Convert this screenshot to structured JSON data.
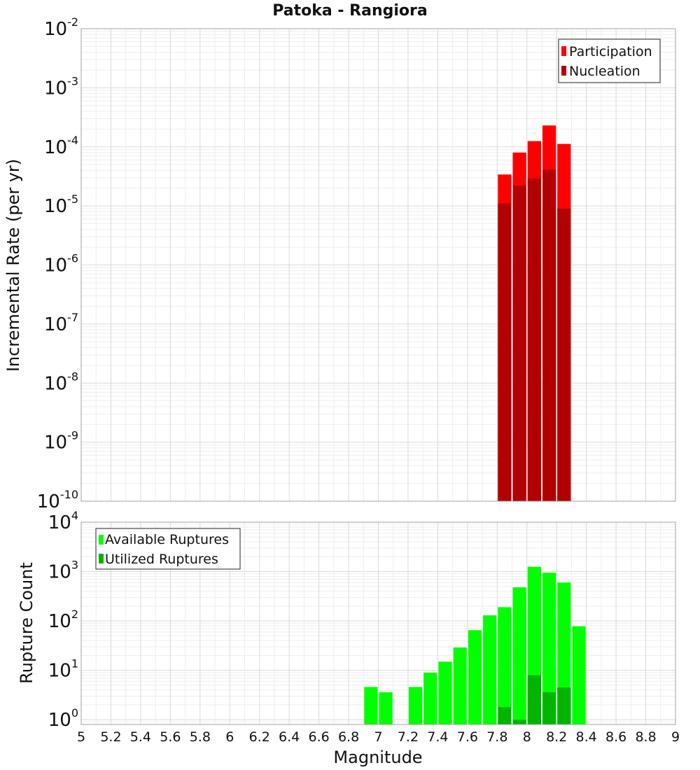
{
  "figure": {
    "title": "Patoka - Rangiora",
    "xlabel": "Magnitude"
  },
  "colors": {
    "participation": "#ff0000",
    "nucleation": "#b20000",
    "available": "#00ff00",
    "utilized": "#00b400",
    "bar_separator": "#ffffff"
  },
  "chart_data": [
    {
      "type": "bar",
      "panel": "rates",
      "title": "Patoka - Rangiora",
      "xlabel": "Magnitude",
      "ylabel": "Incremental Rate (per yr)",
      "yscale": "log",
      "ylim": [
        1e-10,
        0.01
      ],
      "xlim": [
        5,
        9
      ],
      "ytick_exponents": [
        -10,
        -9,
        -8,
        -7,
        -6,
        -5,
        -4,
        -3,
        -2
      ],
      "bin_width": 0.1,
      "legend": {
        "position": "top-right",
        "entries": [
          "Participation",
          "Nucleation"
        ]
      },
      "x": [
        7.85,
        7.95,
        8.05,
        8.15,
        8.25
      ],
      "series": [
        {
          "name": "Participation",
          "color": "#ff0000",
          "values": [
            3.4e-05,
            8e-05,
            0.000125,
            0.00023,
            0.000112
          ]
        },
        {
          "name": "Nucleation",
          "color": "#b20000",
          "values": [
            1.1e-05,
            2.2e-05,
            2.9e-05,
            4.1e-05,
            9e-06
          ]
        }
      ],
      "grid": true
    },
    {
      "type": "bar",
      "panel": "counts",
      "xlabel": "Magnitude",
      "ylabel": "Rupture Count",
      "yscale": "log",
      "ylim": [
        0.8,
        10000
      ],
      "xlim": [
        5,
        9
      ],
      "ytick_exponents": [
        0,
        1,
        2,
        3,
        4
      ],
      "xticks": [
        "5",
        "5.2",
        "5.4",
        "5.6",
        "5.8",
        "6",
        "6.2",
        "6.4",
        "6.6",
        "6.8",
        "7",
        "7.2",
        "7.4",
        "7.6",
        "7.8",
        "8",
        "8.2",
        "8.4",
        "8.6",
        "8.8",
        "9"
      ],
      "bin_width": 0.1,
      "legend": {
        "position": "top-left",
        "entries": [
          "Available Ruptures",
          "Utilized Ruptures"
        ]
      },
      "series": [
        {
          "name": "Available Ruptures",
          "color": "#00ff00",
          "x": [
            6.95,
            7.05,
            7.25,
            7.35,
            7.45,
            7.55,
            7.65,
            7.75,
            7.85,
            7.95,
            8.05,
            8.15,
            8.25,
            8.35
          ],
          "values": [
            4.6,
            3.6,
            4.6,
            9,
            15,
            29,
            65,
            130,
            190,
            480,
            1250,
            950,
            600,
            78
          ]
        },
        {
          "name": "Utilized Ruptures",
          "color": "#00b400",
          "x": [
            7.85,
            7.95,
            8.05,
            8.15,
            8.25
          ],
          "values": [
            1.8,
            1.0,
            8.0,
            3.6,
            4.5
          ]
        }
      ],
      "grid": true
    }
  ]
}
